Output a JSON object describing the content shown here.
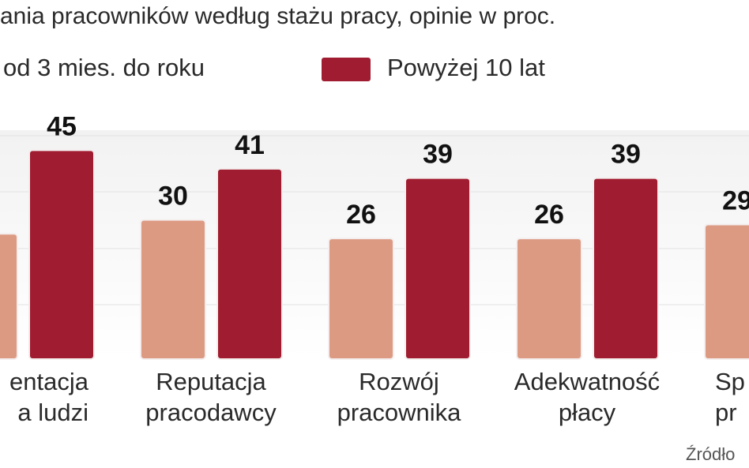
{
  "chart_data": {
    "type": "bar",
    "title": "ania pracowników według stażu pracy, opinie w proc.",
    "categories": [
      [
        "entacja",
        "a ludzi"
      ],
      [
        "Reputacja",
        "pracodawcy"
      ],
      [
        "Rozwój",
        "pracownika"
      ],
      [
        "Adekwatność",
        "płacy"
      ],
      [
        "Sp",
        "pr"
      ]
    ],
    "series": [
      {
        "name": "od 3 mies. do roku",
        "color": "#dc9a82",
        "values": [
          27,
          30,
          26,
          26,
          29
        ]
      },
      {
        "name": "Powyżej 10 lat",
        "color": "#a01c30",
        "values": [
          45,
          41,
          39,
          39,
          null
        ]
      }
    ],
    "ylim": [
      0,
      50
    ],
    "source": "Źródło"
  }
}
